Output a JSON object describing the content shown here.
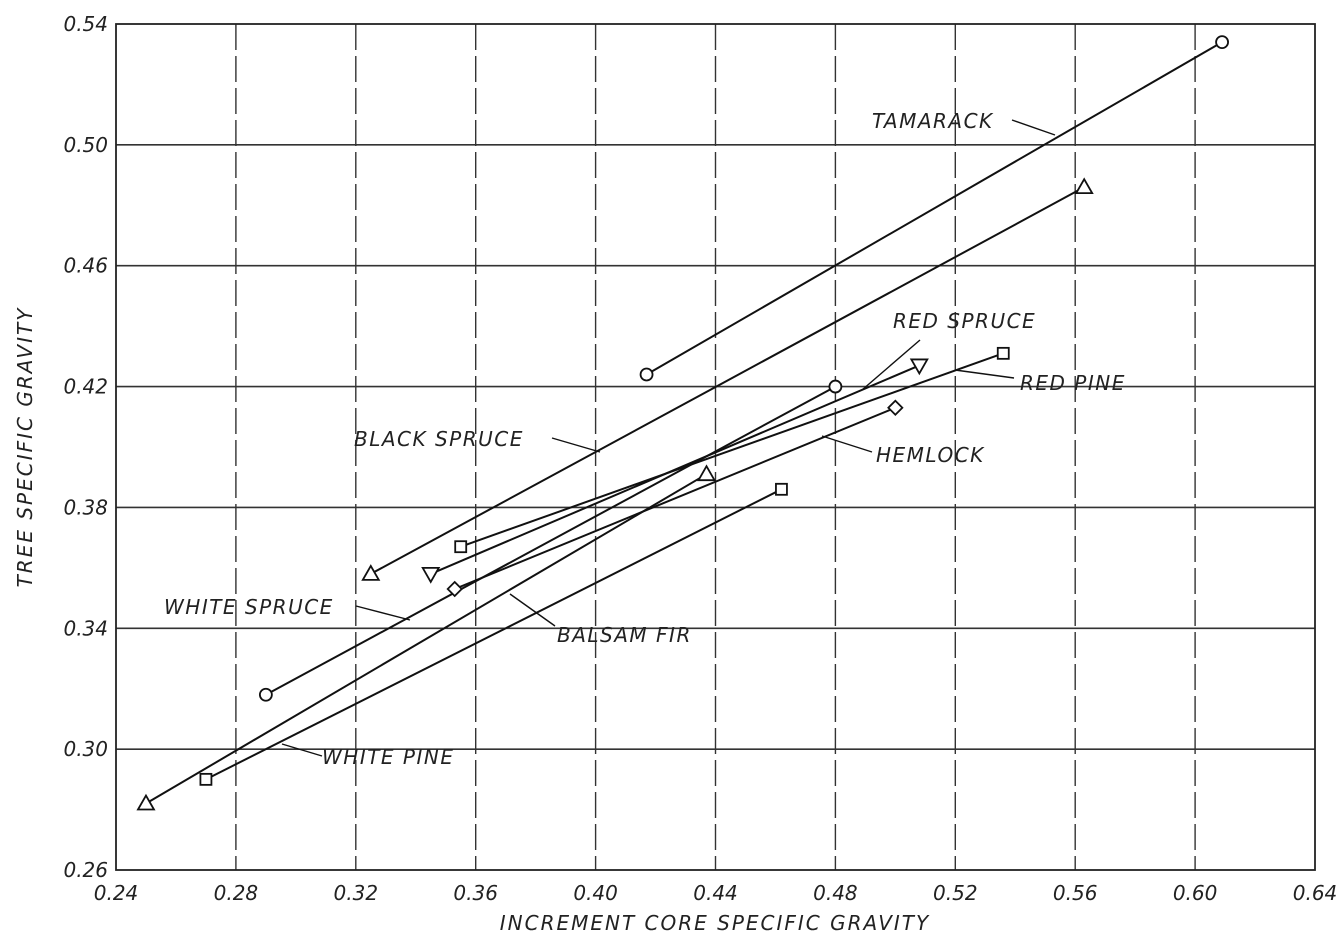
{
  "chart_data": {
    "type": "line",
    "title": "",
    "xlabel": "INCREMENT CORE SPECIFIC GRAVITY",
    "ylabel": "TREE SPECIFIC GRAVITY",
    "xlim": [
      0.24,
      0.64
    ],
    "ylim": [
      0.26,
      0.54
    ],
    "grid": true,
    "x_ticks": [
      "0.24",
      "0.28",
      "0.32",
      "0.36",
      "0.40",
      "0.44",
      "0.48",
      "0.52",
      "0.56",
      "0.60",
      "0.64"
    ],
    "y_ticks": [
      "0.26",
      "0.30",
      "0.34",
      "0.38",
      "0.42",
      "0.46",
      "0.50",
      "0.54"
    ],
    "series": [
      {
        "name": "TAMARACK",
        "marker": "circle",
        "x": [
          0.417,
          0.609
        ],
        "y": [
          0.424,
          0.534
        ]
      },
      {
        "name": "BLACK SPRUCE",
        "marker": "triangle",
        "x": [
          0.325,
          0.563
        ],
        "y": [
          0.358,
          0.486
        ]
      },
      {
        "name": "RED SPRUCE",
        "marker": "triangle-down",
        "x": [
          0.345,
          0.508
        ],
        "y": [
          0.358,
          0.427
        ]
      },
      {
        "name": "RED PINE",
        "marker": "square",
        "x": [
          0.355,
          0.536
        ],
        "y": [
          0.367,
          0.431
        ]
      },
      {
        "name": "HEMLOCK",
        "marker": "diamond",
        "x": [
          0.353,
          0.5
        ],
        "y": [
          0.353,
          0.413
        ]
      },
      {
        "name": "WHITE SPRUCE",
        "marker": "circle",
        "x": [
          0.29,
          0.48
        ],
        "y": [
          0.318,
          0.42
        ]
      },
      {
        "name": "BALSAM FIR",
        "marker": "triangle",
        "x": [
          0.25,
          0.437
        ],
        "y": [
          0.282,
          0.391
        ]
      },
      {
        "name": "WHITE PINE",
        "marker": "square",
        "x": [
          0.27,
          0.462
        ],
        "y": [
          0.29,
          0.386
        ]
      }
    ],
    "annotations": [
      {
        "text": "TAMARACK",
        "series": "TAMARACK"
      },
      {
        "text": "BLACK SPRUCE",
        "series": "BLACK SPRUCE"
      },
      {
        "text": "RED SPRUCE",
        "series": "RED SPRUCE"
      },
      {
        "text": "RED PINE",
        "series": "RED PINE"
      },
      {
        "text": "HEMLOCK",
        "series": "HEMLOCK"
      },
      {
        "text": "WHITE SPRUCE",
        "series": "WHITE SPRUCE"
      },
      {
        "text": "BALSAM FIR",
        "series": "BALSAM FIR"
      },
      {
        "text": "WHITE PINE",
        "series": "WHITE PINE"
      }
    ]
  }
}
